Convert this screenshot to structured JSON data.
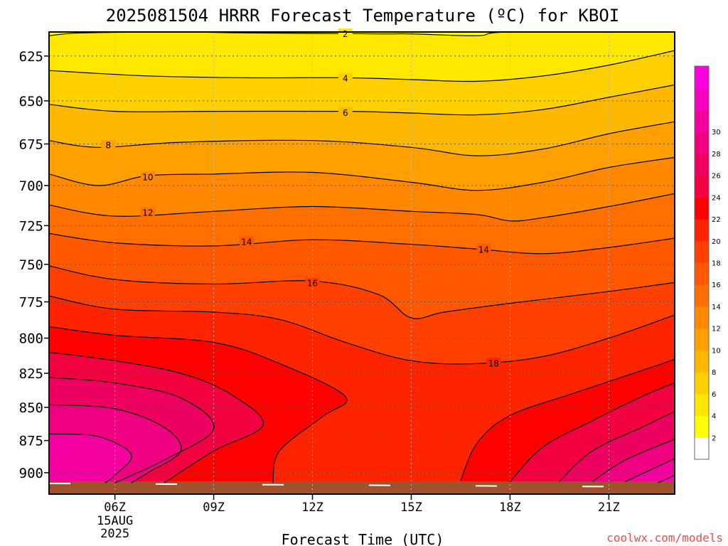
{
  "chart_data": {
    "type": "filled-contour",
    "title": "2025081504 HRRR Forecast Temperature (ºC) for KBOI",
    "xlabel": "Forecast Time (UTC)",
    "ylabel": "",
    "credit": "coolwx.com/models",
    "x_ticks": [
      {
        "label": "06Z",
        "sublabels": [
          "15AUG",
          "2025"
        ]
      },
      {
        "label": "09Z",
        "sublabels": []
      },
      {
        "label": "12Z",
        "sublabels": []
      },
      {
        "label": "15Z",
        "sublabels": []
      },
      {
        "label": "18Z",
        "sublabels": []
      },
      {
        "label": "21Z",
        "sublabels": []
      }
    ],
    "x_hours": [
      4,
      23
    ],
    "y_ticks": [
      "625",
      "650",
      "675",
      "700",
      "725",
      "750",
      "775",
      "800",
      "825",
      "850",
      "875",
      "900"
    ],
    "y_range_hpa": [
      612,
      917
    ],
    "y_scale": "log",
    "grid": true,
    "colorbar": {
      "labels": [
        "2",
        "4",
        "6",
        "8",
        "10",
        "12",
        "14",
        "16",
        "18",
        "20",
        "22",
        "24",
        "26",
        "28",
        "30"
      ],
      "colors": [
        "#ffffff",
        "#ffff00",
        "#ffe800",
        "#ffd000",
        "#ffb800",
        "#ffa000",
        "#ff8800",
        "#ff7000",
        "#ff5800",
        "#ff4000",
        "#ff2400",
        "#ff0000",
        "#f20040",
        "#ee0060",
        "#f00080",
        "#f400a0",
        "#f800c0",
        "#fc00e0"
      ]
    },
    "contour_labels": [
      "2",
      "4",
      "6",
      "8",
      "10",
      "12",
      "14",
      "14",
      "16",
      "18"
    ],
    "ground_color": "#a0522d",
    "contours": [
      {
        "level": 2,
        "points": [
          [
            4,
            614
          ],
          [
            5,
            612.5
          ],
          [
            8,
            612
          ],
          [
            10,
            612.5
          ],
          [
            14,
            613
          ],
          [
            15,
            613
          ],
          [
            17,
            614
          ],
          [
            18,
            612
          ],
          [
            23,
            612
          ]
        ]
      },
      {
        "level": 4,
        "points": [
          [
            4,
            633
          ],
          [
            7,
            636
          ],
          [
            10,
            637
          ],
          [
            13,
            637
          ],
          [
            15,
            638
          ],
          [
            17,
            639
          ],
          [
            19,
            636
          ],
          [
            21,
            630
          ],
          [
            23,
            622
          ]
        ]
      },
      {
        "level": 6,
        "points": [
          [
            4,
            652
          ],
          [
            6,
            656
          ],
          [
            9,
            656
          ],
          [
            13,
            656
          ],
          [
            15,
            657
          ],
          [
            17,
            658
          ],
          [
            19,
            655
          ],
          [
            21,
            648
          ],
          [
            23,
            641
          ]
        ]
      },
      {
        "level": 8,
        "points": [
          [
            4,
            673
          ],
          [
            5.5,
            677
          ],
          [
            8,
            674
          ],
          [
            12,
            673
          ],
          [
            15,
            677
          ],
          [
            17,
            682
          ],
          [
            19,
            678
          ],
          [
            21,
            669
          ],
          [
            23,
            662
          ]
        ]
      },
      {
        "level": 10,
        "points": [
          [
            4,
            693
          ],
          [
            5.5,
            700
          ],
          [
            7,
            694
          ],
          [
            9,
            693
          ],
          [
            12,
            692
          ],
          [
            15,
            698
          ],
          [
            17,
            703
          ],
          [
            19,
            698
          ],
          [
            21,
            689
          ],
          [
            23,
            683
          ]
        ]
      },
      {
        "level": 12,
        "points": [
          [
            4,
            712
          ],
          [
            6,
            719
          ],
          [
            9,
            716
          ],
          [
            12,
            713
          ],
          [
            15,
            716
          ],
          [
            17,
            718
          ],
          [
            18,
            722
          ],
          [
            19,
            720
          ],
          [
            21,
            713
          ],
          [
            23,
            705
          ]
        ]
      },
      {
        "level": 14,
        "points": [
          [
            4,
            730
          ],
          [
            6,
            736
          ],
          [
            9,
            738
          ],
          [
            12,
            734
          ],
          [
            15,
            737
          ],
          [
            17,
            740
          ],
          [
            19,
            743
          ],
          [
            21,
            739
          ],
          [
            23,
            733
          ]
        ]
      },
      {
        "level": 16,
        "points": [
          [
            4,
            751
          ],
          [
            6,
            760
          ],
          [
            9,
            763
          ],
          [
            12,
            761
          ],
          [
            14,
            770
          ],
          [
            15,
            786
          ],
          [
            16,
            782
          ],
          [
            18,
            776
          ],
          [
            21,
            768
          ],
          [
            23,
            762
          ]
        ]
      },
      {
        "level": 18,
        "points": [
          [
            4,
            771
          ],
          [
            6,
            780
          ],
          [
            9,
            782
          ],
          [
            11,
            787
          ],
          [
            13,
            803
          ],
          [
            15,
            816
          ],
          [
            17,
            818
          ],
          [
            19,
            813
          ],
          [
            21,
            800
          ],
          [
            23,
            784
          ]
        ]
      },
      {
        "level": 20,
        "points": [
          [
            4,
            792
          ],
          [
            6,
            798
          ],
          [
            9,
            803
          ],
          [
            11,
            818
          ],
          [
            13,
            842
          ],
          [
            12.3,
            857
          ],
          [
            11,
            883
          ],
          [
            10.8,
            908
          ]
        ]
      },
      {
        "level": 20,
        "points": [
          [
            16.5,
            906
          ],
          [
            17,
            877
          ],
          [
            18,
            856
          ],
          [
            20,
            839
          ],
          [
            22,
            823
          ],
          [
            23,
            815
          ]
        ]
      },
      {
        "level": 22,
        "points": [
          [
            4,
            810
          ],
          [
            6,
            816
          ],
          [
            8,
            825
          ],
          [
            9.5,
            840
          ],
          [
            10.5,
            863
          ],
          [
            9,
            883
          ],
          [
            7.5,
            908
          ]
        ]
      },
      {
        "level": 22,
        "points": [
          [
            18,
            907
          ],
          [
            19,
            880
          ],
          [
            20.5,
            860
          ],
          [
            22,
            842
          ],
          [
            23,
            832
          ]
        ]
      },
      {
        "level": 24,
        "points": [
          [
            4,
            828
          ],
          [
            6,
            832
          ],
          [
            8,
            843
          ],
          [
            9,
            866
          ],
          [
            7.5,
            890
          ],
          [
            6,
            908
          ]
        ]
      },
      {
        "level": 24,
        "points": [
          [
            19.5,
            907
          ],
          [
            20.5,
            883
          ],
          [
            22,
            865
          ],
          [
            23,
            853
          ]
        ]
      },
      {
        "level": 26,
        "points": [
          [
            4,
            848
          ],
          [
            6,
            851
          ],
          [
            7.5,
            865
          ],
          [
            8,
            883
          ],
          [
            7,
            900
          ],
          [
            6.5,
            908
          ]
        ]
      },
      {
        "level": 26,
        "points": [
          [
            20.5,
            907
          ],
          [
            21.5,
            890
          ],
          [
            23,
            874
          ]
        ]
      },
      {
        "level": 28,
        "points": [
          [
            4,
            870
          ],
          [
            5.5,
            872
          ],
          [
            6.5,
            886
          ],
          [
            6,
            902
          ],
          [
            5.7,
            908
          ]
        ]
      },
      {
        "level": 28,
        "points": [
          [
            21.5,
            907
          ],
          [
            22.5,
            895
          ],
          [
            23,
            889
          ]
        ]
      },
      {
        "level": 30,
        "points": [
          [
            22.5,
            908
          ],
          [
            23,
            902
          ]
        ]
      }
    ]
  }
}
